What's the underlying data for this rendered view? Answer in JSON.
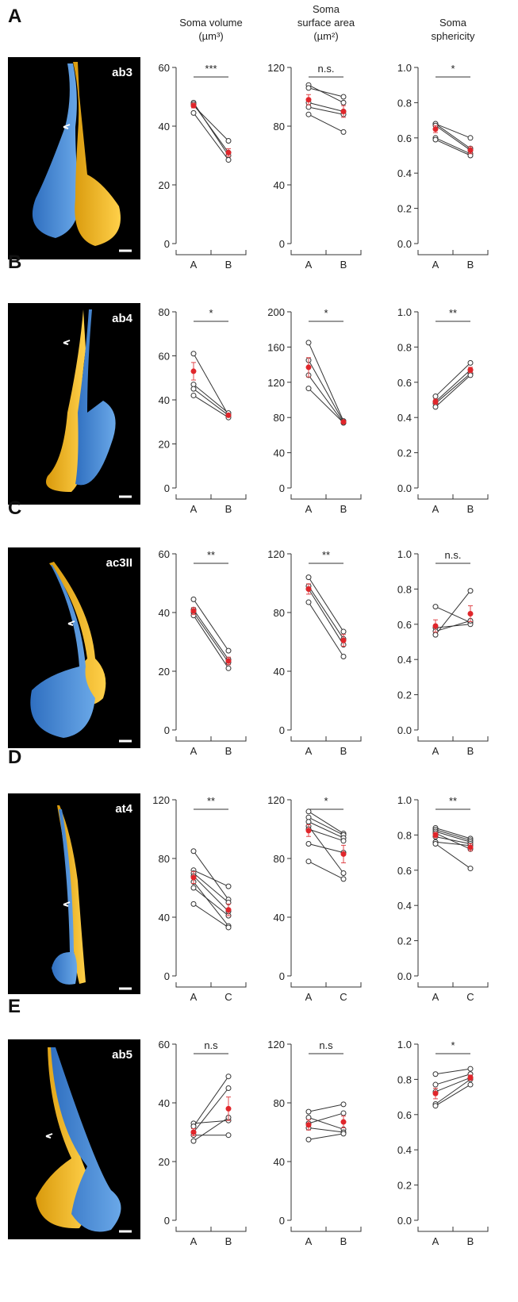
{
  "column_headers": [
    [
      "Soma volume",
      "(µm³)"
    ],
    [
      "Soma",
      "surface area",
      "(µm²)"
    ],
    [
      "Soma",
      "sphericity"
    ]
  ],
  "panels": [
    {
      "label": "A",
      "image_label": "ab3"
    },
    {
      "label": "B",
      "image_label": "ab4"
    },
    {
      "label": "C",
      "image_label": "ac3II"
    },
    {
      "label": "D",
      "image_label": "at4"
    },
    {
      "label": "E",
      "image_label": "ab5"
    }
  ],
  "chart_data": [
    {
      "type": "paired",
      "categories": [
        "A",
        "B"
      ],
      "annotation": "***",
      "ylim": [
        0,
        60
      ],
      "yticks": [
        0,
        20,
        40,
        60
      ],
      "series": [
        {
          "values": [
            48,
            30
          ]
        },
        {
          "values": [
            47.5,
            31
          ]
        },
        {
          "values": [
            47,
            35
          ]
        },
        {
          "values": [
            44.5,
            28.5
          ]
        }
      ],
      "mean": [
        47,
        31
      ],
      "error": [
        0.8,
        1.3
      ]
    },
    {
      "type": "paired",
      "categories": [
        "A",
        "B"
      ],
      "annotation": "n.s.",
      "ylim": [
        0,
        120
      ],
      "yticks": [
        0,
        40,
        80,
        120
      ],
      "series": [
        {
          "values": [
            108,
            96
          ]
        },
        {
          "values": [
            106,
            100
          ]
        },
        {
          "values": [
            96,
            90
          ]
        },
        {
          "values": [
            93,
            88
          ]
        },
        {
          "values": [
            88,
            76
          ]
        }
      ],
      "mean": [
        98,
        90
      ],
      "error": [
        3.5,
        4
      ]
    },
    {
      "type": "paired",
      "categories": [
        "A",
        "B"
      ],
      "annotation": "*",
      "ylim": [
        0,
        1
      ],
      "yticks": [
        {
          "value": 0,
          "label": "0.0"
        },
        0.2,
        0.4,
        0.6,
        0.8,
        {
          "value": 1,
          "label": "1.0"
        }
      ],
      "series": [
        {
          "values": [
            0.68,
            0.6
          ]
        },
        {
          "values": [
            0.68,
            0.54
          ]
        },
        {
          "values": [
            0.67,
            0.53
          ]
        },
        {
          "values": [
            0.6,
            0.51
          ]
        },
        {
          "values": [
            0.59,
            0.5
          ]
        }
      ],
      "mean": [
        0.65,
        0.53
      ],
      "error": [
        0.02,
        0.02
      ]
    },
    {
      "type": "paired",
      "categories": [
        "A",
        "B"
      ],
      "annotation": "*",
      "ylim": [
        0,
        80
      ],
      "yticks": [
        0,
        20,
        40,
        60,
        80
      ],
      "series": [
        {
          "values": [
            61,
            33
          ]
        },
        {
          "values": [
            47,
            34
          ]
        },
        {
          "values": [
            45,
            33
          ]
        },
        {
          "values": [
            42,
            32
          ]
        }
      ],
      "mean": [
        53,
        33
      ],
      "error": [
        4,
        0.6
      ]
    },
    {
      "type": "paired",
      "categories": [
        "A",
        "B"
      ],
      "annotation": "*",
      "ylim": [
        0,
        200
      ],
      "yticks": [
        0,
        40,
        80,
        120,
        160,
        200
      ],
      "series": [
        {
          "values": [
            165,
            76
          ]
        },
        {
          "values": [
            145,
            75
          ]
        },
        {
          "values": [
            128,
            74
          ]
        },
        {
          "values": [
            113,
            74
          ]
        }
      ],
      "mean": [
        137,
        75
      ],
      "error": [
        11,
        0.6
      ]
    },
    {
      "type": "paired",
      "categories": [
        "A",
        "B"
      ],
      "annotation": "**",
      "ylim": [
        0,
        1
      ],
      "yticks": [
        {
          "value": 0,
          "label": "0.0"
        },
        0.2,
        0.4,
        0.6,
        0.8,
        {
          "value": 1,
          "label": "1.0"
        }
      ],
      "series": [
        {
          "values": [
            0.52,
            0.71
          ]
        },
        {
          "values": [
            0.49,
            0.67
          ]
        },
        {
          "values": [
            0.48,
            0.65
          ]
        },
        {
          "values": [
            0.46,
            0.64
          ]
        }
      ],
      "mean": [
        0.49,
        0.67
      ],
      "error": [
        0.015,
        0.015
      ]
    },
    {
      "type": "paired",
      "categories": [
        "A",
        "B"
      ],
      "annotation": "**",
      "ylim": [
        0,
        60
      ],
      "yticks": [
        0,
        20,
        40,
        60
      ],
      "series": [
        {
          "values": [
            44.5,
            27
          ]
        },
        {
          "values": [
            41,
            24
          ]
        },
        {
          "values": [
            40,
            23
          ]
        },
        {
          "values": [
            39,
            21
          ]
        }
      ],
      "mean": [
        40.5,
        23.5
      ],
      "error": [
        1.2,
        1.3
      ]
    },
    {
      "type": "paired",
      "categories": [
        "A",
        "B"
      ],
      "annotation": "**",
      "ylim": [
        0,
        120
      ],
      "yticks": [
        0,
        40,
        80,
        120
      ],
      "series": [
        {
          "values": [
            104,
            67
          ]
        },
        {
          "values": [
            98,
            62
          ]
        },
        {
          "values": [
            96,
            58
          ]
        },
        {
          "values": [
            87,
            50
          ]
        }
      ],
      "mean": [
        96,
        61
      ],
      "error": [
        3.5,
        4
      ]
    },
    {
      "type": "paired",
      "categories": [
        "A",
        "B"
      ],
      "annotation": "n.s.",
      "ylim": [
        0,
        1
      ],
      "yticks": [
        {
          "value": 0,
          "label": "0.0"
        },
        0.2,
        0.4,
        0.6,
        0.8,
        {
          "value": 1,
          "label": "1.0"
        }
      ],
      "series": [
        {
          "values": [
            0.7,
            0.61
          ]
        },
        {
          "values": [
            0.58,
            0.6
          ]
        },
        {
          "values": [
            0.56,
            0.62
          ]
        },
        {
          "values": [
            0.54,
            0.79
          ]
        }
      ],
      "mean": [
        0.59,
        0.66
      ],
      "error": [
        0.035,
        0.045
      ]
    },
    {
      "type": "paired",
      "categories": [
        "A",
        "C"
      ],
      "annotation": "**",
      "ylim": [
        0,
        120
      ],
      "yticks": [
        0,
        40,
        80,
        120
      ],
      "series": [
        {
          "values": [
            85,
            52
          ]
        },
        {
          "values": [
            72,
            61
          ]
        },
        {
          "values": [
            70,
            50
          ]
        },
        {
          "values": [
            68,
            44
          ]
        },
        {
          "values": [
            64,
            34
          ]
        },
        {
          "values": [
            60,
            41
          ]
        },
        {
          "values": [
            49,
            33
          ]
        }
      ],
      "mean": [
        67,
        45
      ],
      "error": [
        4,
        4
      ]
    },
    {
      "type": "paired",
      "categories": [
        "A",
        "C"
      ],
      "annotation": "*",
      "ylim": [
        0,
        120
      ],
      "yticks": [
        0,
        40,
        80,
        120
      ],
      "series": [
        {
          "values": [
            112,
            97
          ]
        },
        {
          "values": [
            108,
            96
          ]
        },
        {
          "values": [
            105,
            94
          ]
        },
        {
          "values": [
            102,
            70
          ]
        },
        {
          "values": [
            100,
            92
          ]
        },
        {
          "values": [
            90,
            84
          ]
        },
        {
          "values": [
            78,
            66
          ]
        }
      ],
      "mean": [
        99,
        83
      ],
      "error": [
        4,
        6
      ]
    },
    {
      "type": "paired",
      "categories": [
        "A",
        "C"
      ],
      "annotation": "**",
      "ylim": [
        0,
        1
      ],
      "yticks": [
        {
          "value": 0,
          "label": "0.0"
        },
        0.2,
        0.4,
        0.6,
        0.8,
        {
          "value": 1,
          "label": "1.0"
        }
      ],
      "series": [
        {
          "values": [
            0.84,
            0.78
          ]
        },
        {
          "values": [
            0.83,
            0.77
          ]
        },
        {
          "values": [
            0.82,
            0.76
          ]
        },
        {
          "values": [
            0.81,
            0.72
          ]
        },
        {
          "values": [
            0.79,
            0.75
          ]
        },
        {
          "values": [
            0.76,
            0.74
          ]
        },
        {
          "values": [
            0.75,
            0.61
          ]
        }
      ],
      "mean": [
        0.8,
        0.73
      ],
      "error": [
        0.015,
        0.02
      ]
    },
    {
      "type": "paired",
      "categories": [
        "A",
        "B"
      ],
      "annotation": "n.s",
      "ylim": [
        0,
        60
      ],
      "yticks": [
        0,
        20,
        40,
        60
      ],
      "series": [
        {
          "values": [
            33,
            34
          ]
        },
        {
          "values": [
            32,
            49
          ]
        },
        {
          "values": [
            30,
            45
          ]
        },
        {
          "values": [
            29,
            29
          ]
        },
        {
          "values": [
            27,
            35
          ]
        }
      ],
      "mean": [
        30,
        38
      ],
      "error": [
        1.2,
        4
      ]
    },
    {
      "type": "paired",
      "categories": [
        "A",
        "B"
      ],
      "annotation": "n.s",
      "ylim": [
        0,
        120
      ],
      "yticks": [
        0,
        40,
        80,
        120
      ],
      "series": [
        {
          "values": [
            74,
            79
          ]
        },
        {
          "values": [
            70,
            62
          ]
        },
        {
          "values": [
            66,
            73
          ]
        },
        {
          "values": [
            63,
            60
          ]
        },
        {
          "values": [
            55,
            59
          ]
        }
      ],
      "mean": [
        65,
        67
      ],
      "error": [
        3.5,
        4
      ]
    },
    {
      "type": "paired",
      "categories": [
        "A",
        "B"
      ],
      "annotation": "*",
      "ylim": [
        0,
        1
      ],
      "yticks": [
        {
          "value": 0,
          "label": "0.0"
        },
        0.2,
        0.4,
        0.6,
        0.8,
        {
          "value": 1,
          "label": "1.0"
        }
      ],
      "series": [
        {
          "values": [
            0.83,
            0.86
          ]
        },
        {
          "values": [
            0.77,
            0.83
          ]
        },
        {
          "values": [
            0.73,
            0.81
          ]
        },
        {
          "values": [
            0.66,
            0.8
          ]
        },
        {
          "values": [
            0.65,
            0.77
          ]
        }
      ],
      "mean": [
        0.72,
        0.81
      ],
      "error": [
        0.03,
        0.015
      ]
    }
  ]
}
